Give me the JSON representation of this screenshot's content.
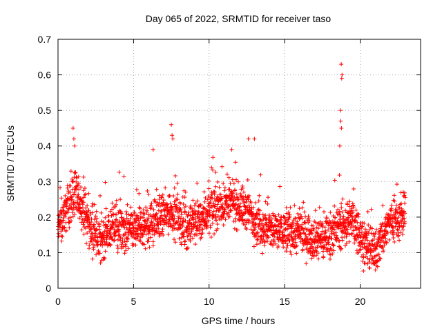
{
  "chart_data": {
    "type": "scatter",
    "title": "Day 065 of 2022, SRMTID for receiver taso",
    "xlabel": "GPS time / hours",
    "ylabel": "SRMTID / TECUs",
    "xlim": [
      0,
      24
    ],
    "ylim": [
      0,
      0.7
    ],
    "xticks": [
      0,
      5,
      10,
      15,
      20
    ],
    "xtick_labels": [
      "0",
      "5",
      "10",
      "15",
      "20"
    ],
    "yticks": [
      0,
      0.1,
      0.2,
      0.3,
      0.4,
      0.5,
      0.6,
      0.7
    ],
    "ytick_labels": [
      "0",
      "0.1",
      "0.2",
      "0.3",
      "0.4",
      "0.5",
      "0.6",
      "0.7"
    ],
    "grid": true,
    "marker": "plus",
    "color": "#ff0000",
    "series": [
      {
        "name": "SRMTID",
        "x_start": 0.0,
        "x_step": 0.02,
        "n_points": 1150,
        "baseline_profile": [
          {
            "x": 0.0,
            "y": 0.16
          },
          {
            "x": 0.5,
            "y": 0.22
          },
          {
            "x": 1.0,
            "y": 0.26
          },
          {
            "x": 1.5,
            "y": 0.24
          },
          {
            "x": 2.0,
            "y": 0.18
          },
          {
            "x": 2.7,
            "y": 0.13
          },
          {
            "x": 3.5,
            "y": 0.17
          },
          {
            "x": 4.5,
            "y": 0.16
          },
          {
            "x": 5.5,
            "y": 0.17
          },
          {
            "x": 6.5,
            "y": 0.19
          },
          {
            "x": 7.5,
            "y": 0.22
          },
          {
            "x": 8.5,
            "y": 0.17
          },
          {
            "x": 9.5,
            "y": 0.2
          },
          {
            "x": 10.5,
            "y": 0.23
          },
          {
            "x": 11.5,
            "y": 0.24
          },
          {
            "x": 12.5,
            "y": 0.22
          },
          {
            "x": 13.5,
            "y": 0.17
          },
          {
            "x": 14.5,
            "y": 0.16
          },
          {
            "x": 15.5,
            "y": 0.16
          },
          {
            "x": 16.5,
            "y": 0.15
          },
          {
            "x": 17.5,
            "y": 0.14
          },
          {
            "x": 18.5,
            "y": 0.17
          },
          {
            "x": 19.5,
            "y": 0.19
          },
          {
            "x": 20.5,
            "y": 0.11
          },
          {
            "x": 21.0,
            "y": 0.1
          },
          {
            "x": 21.5,
            "y": 0.15
          },
          {
            "x": 22.0,
            "y": 0.19
          },
          {
            "x": 22.9,
            "y": 0.2
          }
        ],
        "peaks": [
          {
            "x": 1.0,
            "y": 0.45
          },
          {
            "x": 1.05,
            "y": 0.42
          },
          {
            "x": 1.1,
            "y": 0.4
          },
          {
            "x": 7.5,
            "y": 0.46
          },
          {
            "x": 7.55,
            "y": 0.43
          },
          {
            "x": 7.6,
            "y": 0.42
          },
          {
            "x": 11.5,
            "y": 0.39
          },
          {
            "x": 12.6,
            "y": 0.42
          },
          {
            "x": 13.0,
            "y": 0.42
          },
          {
            "x": 18.75,
            "y": 0.63
          },
          {
            "x": 18.8,
            "y": 0.6
          },
          {
            "x": 18.78,
            "y": 0.59
          },
          {
            "x": 18.7,
            "y": 0.5
          },
          {
            "x": 18.72,
            "y": 0.47
          },
          {
            "x": 18.76,
            "y": 0.45
          },
          {
            "x": 18.65,
            "y": 0.4
          },
          {
            "x": 6.3,
            "y": 0.39
          }
        ]
      }
    ]
  }
}
